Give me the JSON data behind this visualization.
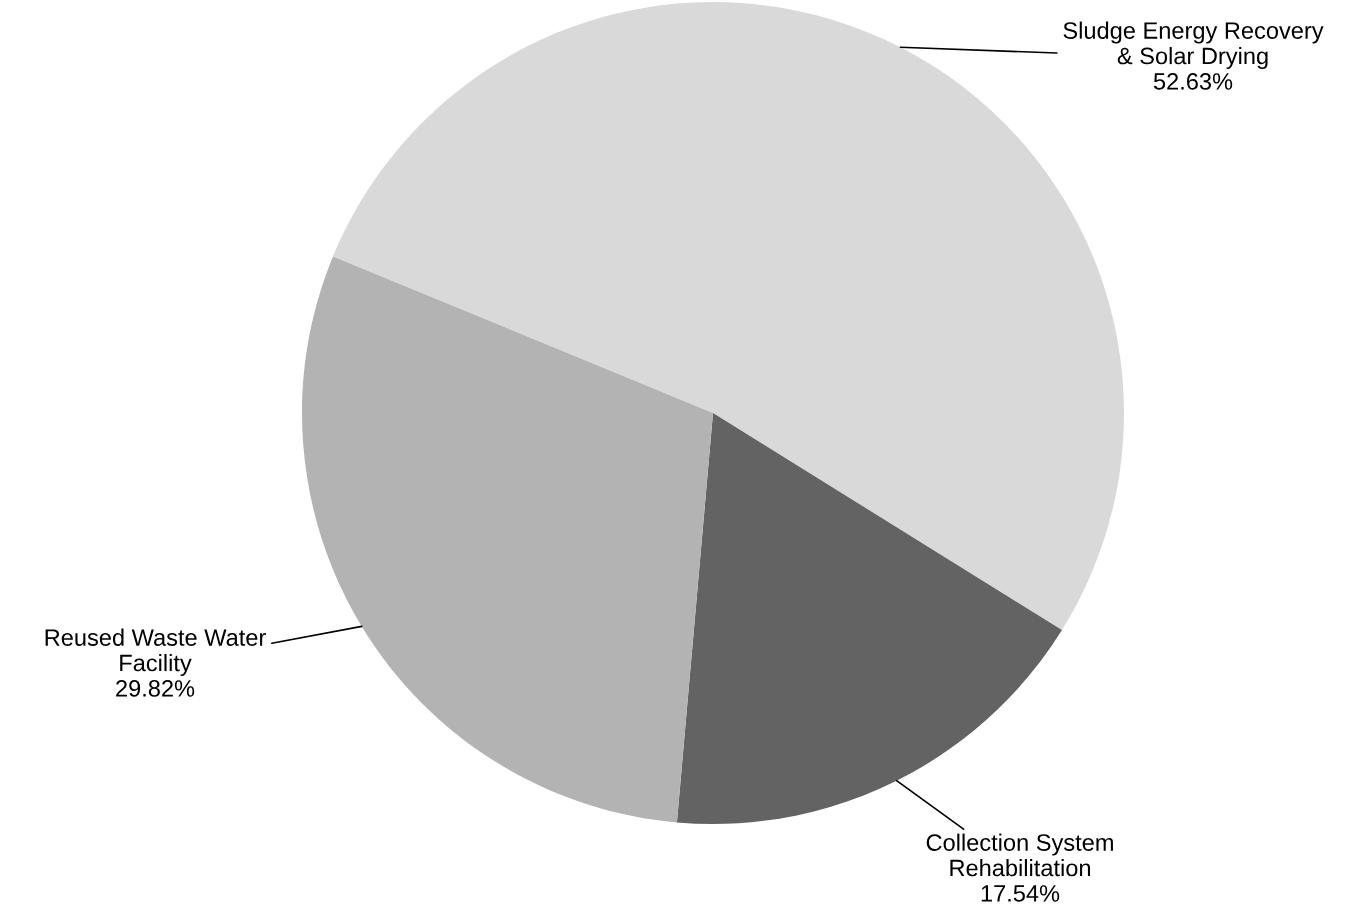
{
  "chart_data": {
    "type": "pie",
    "categories": [
      "Sludge Energy Recovery\n& Solar Drying",
      "Collection System\nRehabilitation",
      "Reused Waste Water\nFacility"
    ],
    "values": [
      52.63,
      17.54,
      29.82
    ],
    "value_labels": [
      "52.63%",
      "17.54%",
      "29.82%"
    ],
    "colors": [
      "#d9d9d9",
      "#636363",
      "#b3b3b3"
    ],
    "legend": false
  }
}
